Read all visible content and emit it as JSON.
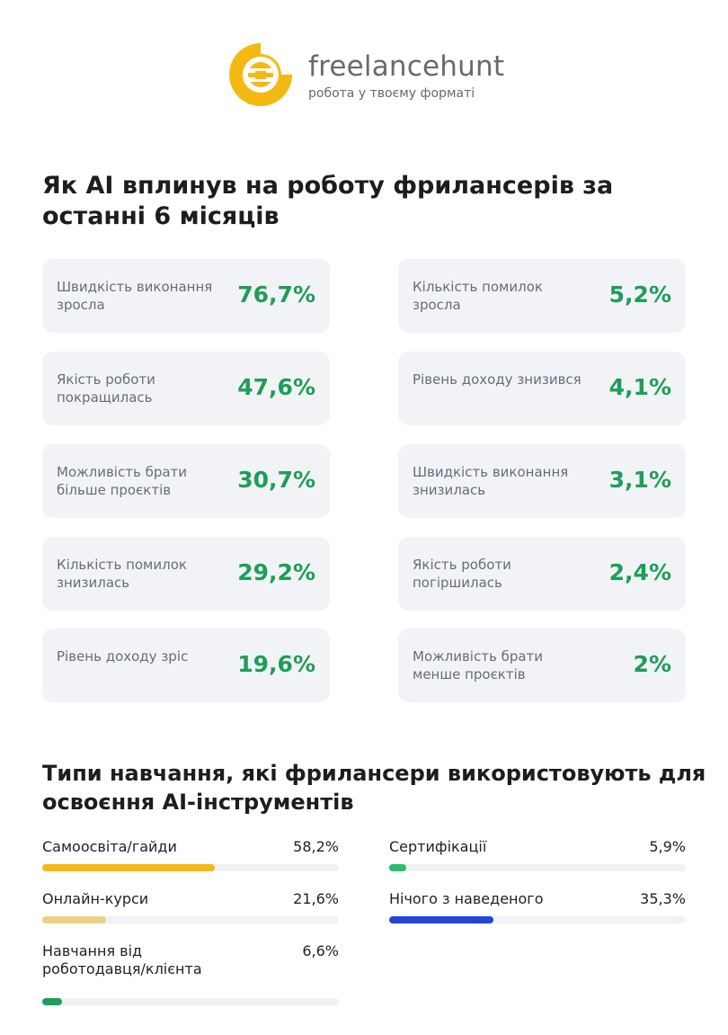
{
  "header": {
    "brand_name": "freelancehunt",
    "tagline": "робота у твоєму форматі",
    "logo_icon": "freelancehunt-logo-icon",
    "brand_color": "#f5b914"
  },
  "impact": {
    "title": "Як AI вплинув на роботу фрилансерів за останні 6 місяців",
    "left": [
      {
        "label": "Швидкість виконання зросла",
        "value": "76,7%"
      },
      {
        "label": "Якість роботи покращилась",
        "value": "47,6%"
      },
      {
        "label": "Можливість брати більше проєктів",
        "value": "30,7%"
      },
      {
        "label": "Кількість помилок знизилась",
        "value": "29,2%"
      },
      {
        "label": "Рівень доходу зріс",
        "value": "19,6%"
      }
    ],
    "right": [
      {
        "label": "Кількість помилок зросла",
        "value": "5,2%"
      },
      {
        "label": "Рівень доходу знизився",
        "value": "4,1%"
      },
      {
        "label": "Швидкість виконання знизилась",
        "value": "3,1%"
      },
      {
        "label": "Якість роботи погіршилась",
        "value": "2,4%"
      },
      {
        "label": "Можливість брати менше проєктів",
        "value": "2%"
      }
    ],
    "value_color": "#1e9e57"
  },
  "training": {
    "title": "Типи навчання, які фрилансери використовують для освоєння AI-інструментів",
    "left": [
      {
        "label": "Самоосвіта/гайди",
        "value": "58,2%",
        "fraction": 0.582,
        "color": "#f5b914"
      },
      {
        "label": "Онлайн-курси",
        "value": "21,6%",
        "fraction": 0.216,
        "color": "#ecd084"
      },
      {
        "label": "Навчання від роботодавця/клієнта",
        "value": "6,6%",
        "fraction": 0.066,
        "color": "#1e9e57"
      }
    ],
    "right": [
      {
        "label": "Сертифікації",
        "value": "5,9%",
        "fraction": 0.059,
        "color": "#2bbd6e"
      },
      {
        "label": "Нічого з наведеного",
        "value": "35,3%",
        "fraction": 0.353,
        "color": "#2445d8"
      }
    ]
  }
}
